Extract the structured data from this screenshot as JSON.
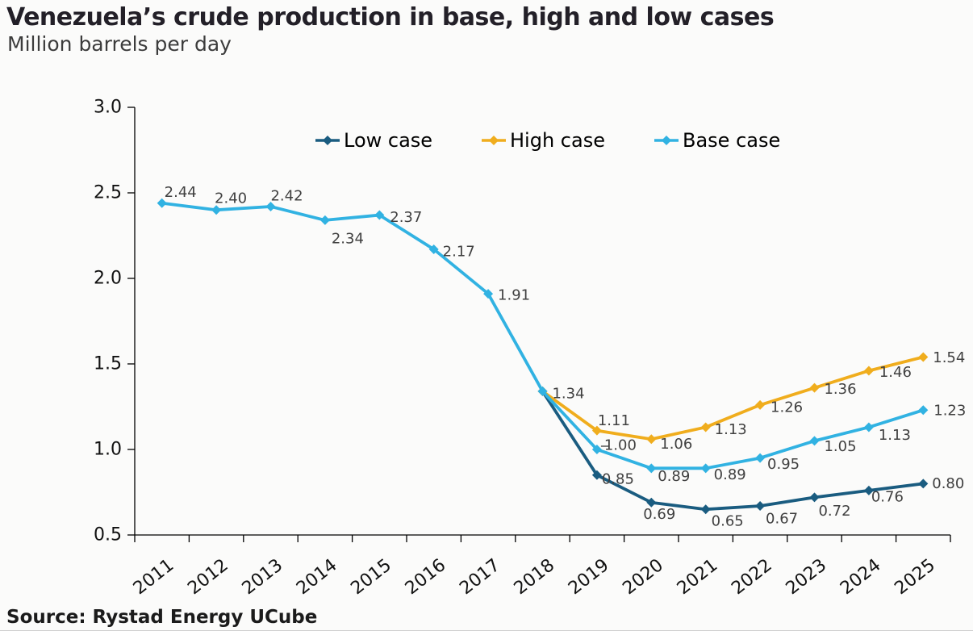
{
  "page": {
    "title": "Venezuela’s crude production in base, high and low cases",
    "subtitle": "Million barrels per day",
    "source": "Source: Rystad Energy UCube"
  },
  "colors": {
    "low": "#1a5c80",
    "high": "#f0ad1d",
    "base": "#31b2e2",
    "data_label": "#404040",
    "axis": "#000000",
    "tick_label": "#111111",
    "leader": "#555555"
  },
  "legend": {
    "items": [
      {
        "key": "low",
        "label": "Low case"
      },
      {
        "key": "high",
        "label": "High case"
      },
      {
        "key": "base",
        "label": "Base case"
      }
    ]
  },
  "chart_data": {
    "type": "line",
    "title": "Venezuela’s crude production in base, high and low cases",
    "ylabel": "Million barrels per day",
    "xlabel": "",
    "grid": false,
    "legend_position": "top-center",
    "categories": [
      "2011",
      "2012",
      "2013",
      "2014",
      "2015",
      "2016",
      "2017",
      "2018",
      "2019",
      "2020",
      "2021",
      "2022",
      "2023",
      "2024",
      "2025"
    ],
    "ylim": [
      0.5,
      3.0
    ],
    "yticks": [
      0.5,
      1.0,
      1.5,
      2.0,
      2.5,
      3.0
    ],
    "series": [
      {
        "name": "Low case",
        "key": "low",
        "start_index": 7,
        "values": [
          1.34,
          0.85,
          0.69,
          0.65,
          0.67,
          0.72,
          0.76,
          0.8
        ],
        "label_offsets": [
          null,
          [
            26,
            5
          ],
          [
            10,
            15
          ],
          [
            27,
            15
          ],
          [
            27,
            16
          ],
          [
            25,
            17
          ],
          [
            23,
            8
          ],
          [
            31,
            0
          ]
        ]
      },
      {
        "name": "High case",
        "key": "high",
        "start_index": 7,
        "values": [
          1.34,
          1.11,
          1.06,
          1.13,
          1.26,
          1.36,
          1.46,
          1.54
        ],
        "label_offsets": [
          null,
          [
            21,
            -12
          ],
          [
            31,
            6
          ],
          [
            31,
            3
          ],
          [
            33,
            3
          ],
          [
            32,
            2
          ],
          [
            33,
            2
          ],
          [
            32,
            1
          ]
        ]
      },
      {
        "name": "Base case",
        "key": "base",
        "start_index": 0,
        "values": [
          2.44,
          2.4,
          2.42,
          2.34,
          2.37,
          2.17,
          1.91,
          1.34,
          1.0,
          0.89,
          0.89,
          0.95,
          1.05,
          1.13,
          1.23
        ],
        "label_offsets": [
          [
            23,
            -13
          ],
          [
            18,
            -14
          ],
          [
            20,
            -13
          ],
          [
            28,
            23
          ],
          [
            33,
            3
          ],
          [
            31,
            3
          ],
          [
            32,
            2
          ],
          [
            32,
            3
          ],
          [
            29,
            -5
          ],
          [
            28,
            10
          ],
          [
            30,
            8
          ],
          [
            29,
            8
          ],
          [
            32,
            7
          ],
          [
            32,
            10
          ],
          [
            33,
            1
          ]
        ],
        "leader_indices": [
          8
        ]
      }
    ]
  }
}
